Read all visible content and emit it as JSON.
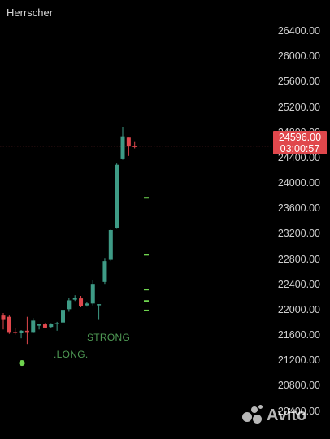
{
  "header": {
    "title": "Herrscher"
  },
  "price_badge": {
    "price": "24596.00",
    "countdown": "03:00:57"
  },
  "markers": {
    "strong_label": "STRONG",
    "long_label": ".LONG."
  },
  "watermark": {
    "text": "Avito"
  },
  "colors": {
    "up": "#3e9b86",
    "down": "#e0474c",
    "signal": "#6fd44f",
    "marker_text": "#4f9b55",
    "current_price_line": "#d8484c"
  },
  "chart_data": {
    "type": "candlestick",
    "y_ticks": [
      26400,
      26000,
      25600,
      25200,
      24800,
      24400,
      24000,
      23600,
      23200,
      22800,
      22400,
      22000,
      21600,
      21200,
      20800,
      20400
    ],
    "y_tick_labels": [
      "26400.00",
      "26000.00",
      "25600.00",
      "25200.00",
      "24800.00",
      "24400.00",
      "24000.00",
      "23600.00",
      "23200.00",
      "22800.00",
      "22400.00",
      "22000.00",
      "21600.00",
      "21200.00",
      "20800.00",
      "20400.00"
    ],
    "ylim": [
      20330,
      26620
    ],
    "current_price": 24596,
    "candles": [
      {
        "o": 21920,
        "h": 21960,
        "l": 21700,
        "c": 21850
      },
      {
        "o": 21900,
        "h": 21920,
        "l": 21630,
        "c": 21660
      },
      {
        "o": 21660,
        "h": 21720,
        "l": 21620,
        "c": 21640
      },
      {
        "o": 21640,
        "h": 21690,
        "l": 21560,
        "c": 21680
      },
      {
        "o": 21680,
        "h": 21900,
        "l": 21470,
        "c": 21660
      },
      {
        "o": 21660,
        "h": 21880,
        "l": 21640,
        "c": 21840
      },
      {
        "o": 21760,
        "h": 21790,
        "l": 21700,
        "c": 21780
      },
      {
        "o": 21780,
        "h": 21800,
        "l": 21730,
        "c": 21730
      },
      {
        "o": 21740,
        "h": 21800,
        "l": 21720,
        "c": 21790
      },
      {
        "o": 21800,
        "h": 21820,
        "l": 21680,
        "c": 21800
      },
      {
        "o": 21810,
        "h": 22330,
        "l": 21620,
        "c": 22010
      },
      {
        "o": 22020,
        "h": 22200,
        "l": 21980,
        "c": 22160
      },
      {
        "o": 22170,
        "h": 22240,
        "l": 22150,
        "c": 22200
      },
      {
        "o": 22190,
        "h": 22230,
        "l": 22050,
        "c": 22070
      },
      {
        "o": 22080,
        "h": 22130,
        "l": 22060,
        "c": 22110
      },
      {
        "o": 22110,
        "h": 22480,
        "l": 22080,
        "c": 22420
      },
      {
        "o": 22100,
        "h": 22100,
        "l": 21850,
        "c": 22100
      },
      {
        "o": 22450,
        "h": 22830,
        "l": 22420,
        "c": 22780
      },
      {
        "o": 22800,
        "h": 23280,
        "l": 22780,
        "c": 23270
      },
      {
        "o": 23300,
        "h": 24320,
        "l": 23290,
        "c": 24300
      },
      {
        "o": 24400,
        "h": 24900,
        "l": 24380,
        "c": 24750
      },
      {
        "o": 24730,
        "h": 24730,
        "l": 24440,
        "c": 24590
      },
      {
        "o": 24600,
        "h": 24660,
        "l": 24560,
        "c": 24596
      }
    ],
    "side_ticks": [
      23780,
      22880,
      22330,
      22150,
      22000
    ],
    "signal_dot_price": 21170
  }
}
